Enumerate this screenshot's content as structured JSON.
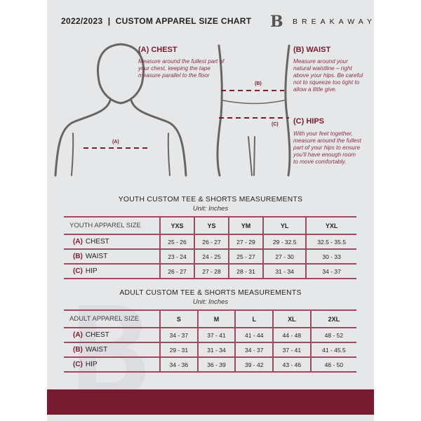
{
  "header": {
    "title": "2022/2023  |  CUSTOM APPAREL SIZE CHART",
    "brand": "BREAKAWAY",
    "logo_letter": "B"
  },
  "measures": {
    "chest": {
      "title": "(A) CHEST",
      "text": "Measure around the fullest part of your chest, keeping the tape measure parallel to the floor",
      "marker": "(A)"
    },
    "waist": {
      "title": "(B) WAIST",
      "text": "Measure around your natural waistline – right above your hips. Be careful not to squeeze too tight to allow a little give.",
      "marker": "(B)"
    },
    "hips": {
      "title": "(C) HIPS",
      "text": "With your feet together, measure around the fullest part of your hips to ensure you'll have enough room to move comfortably.",
      "marker": "(C)"
    }
  },
  "youth": {
    "title": "YOUTH CUSTOM TEE & SHORTS MEASUREMENTS",
    "unit": "Unit: Inches",
    "header": "YOUTH APPAREL SIZE",
    "sizes": [
      "YXS",
      "YS",
      "YM",
      "YL",
      "YXL"
    ],
    "rows": [
      {
        "tag": "(A)",
        "label": "CHEST",
        "values": [
          "25 - 26",
          "26 - 27",
          "27 - 29",
          "29 - 32.5",
          "32.5 - 35.5"
        ]
      },
      {
        "tag": "(B)",
        "label": "WAIST",
        "values": [
          "23 - 24",
          "24 - 25",
          "25 - 27",
          "27 - 30",
          "30 - 33"
        ]
      },
      {
        "tag": "(C)",
        "label": "HIP",
        "values": [
          "26 - 27",
          "27 - 28",
          "28 - 31",
          "31 - 34",
          "34 - 37"
        ]
      }
    ]
  },
  "adult": {
    "title": "ADULT CUSTOM TEE & SHORTS MEASUREMENTS",
    "unit": "Unit: Inches",
    "header": "ADULT APPAREL SIZE",
    "sizes": [
      "S",
      "M",
      "L",
      "XL",
      "2XL"
    ],
    "rows": [
      {
        "tag": "(A)",
        "label": "CHEST",
        "values": [
          "34 - 37",
          "37 - 41",
          "41 - 44",
          "44 - 48",
          "48 - 52"
        ]
      },
      {
        "tag": "(B)",
        "label": "WAIST",
        "values": [
          "29 - 31",
          "31 - 34",
          "34 - 37",
          "37 - 41",
          "41 - 45.5"
        ]
      },
      {
        "tag": "(C)",
        "label": "HIP",
        "values": [
          "34 - 36",
          "36 - 39",
          "39 - 42",
          "43 - 46",
          "46 - 50"
        ]
      }
    ]
  },
  "colors": {
    "accent": "#761b30",
    "background": "#e6e7e9"
  }
}
